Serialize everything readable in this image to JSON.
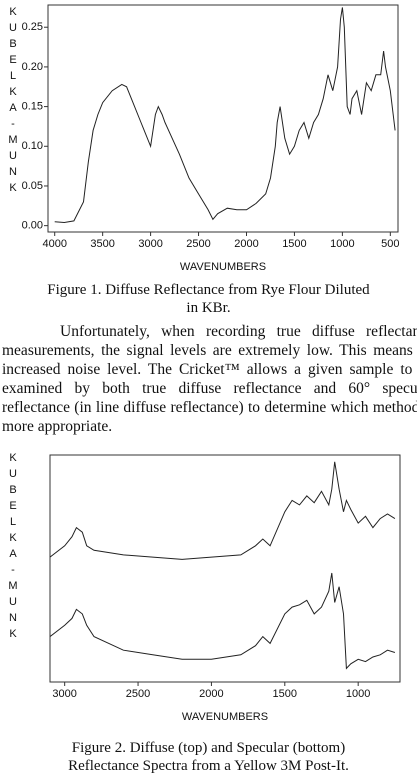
{
  "chart_data": [
    {
      "type": "line",
      "y_label": "KUBELKA-MUNK",
      "x_label": "WAVENUMBERS",
      "caption": "Figure 1.  Diffuse Reflectance from Rye Flour Diluted in KBr.",
      "x": [
        4000,
        3900,
        3800,
        3700,
        3650,
        3600,
        3550,
        3500,
        3400,
        3300,
        3250,
        3200,
        3100,
        3000,
        2950,
        2920,
        2880,
        2850,
        2700,
        2600,
        2500,
        2400,
        2350,
        2300,
        2200,
        2100,
        2000,
        1900,
        1800,
        1750,
        1700,
        1680,
        1650,
        1600,
        1550,
        1500,
        1450,
        1400,
        1350,
        1300,
        1250,
        1200,
        1150,
        1100,
        1050,
        1020,
        1000,
        980,
        950,
        920,
        900,
        850,
        800,
        750,
        700,
        650,
        600,
        570,
        550,
        500,
        450
      ],
      "series": [
        {
          "color": "#222222",
          "values": [
            0.005,
            0.004,
            0.006,
            0.03,
            0.08,
            0.12,
            0.14,
            0.155,
            0.17,
            0.178,
            0.175,
            0.16,
            0.13,
            0.1,
            0.14,
            0.15,
            0.14,
            0.13,
            0.09,
            0.06,
            0.04,
            0.02,
            0.008,
            0.015,
            0.022,
            0.02,
            0.02,
            0.028,
            0.04,
            0.06,
            0.1,
            0.13,
            0.15,
            0.11,
            0.09,
            0.1,
            0.12,
            0.13,
            0.11,
            0.13,
            0.14,
            0.16,
            0.19,
            0.17,
            0.2,
            0.26,
            0.275,
            0.25,
            0.15,
            0.14,
            0.16,
            0.17,
            0.14,
            0.18,
            0.17,
            0.19,
            0.19,
            0.22,
            0.2,
            0.17,
            0.12
          ]
        }
      ],
      "xlim": [
        4070,
        420
      ],
      "ylim": [
        -0.008,
        0.278
      ],
      "xticks": [
        4000,
        3500,
        3000,
        2500,
        2000,
        1500,
        1000,
        500
      ],
      "yticks": [
        {
          "value": 0,
          "label": "0.00"
        },
        {
          "value": 0.05,
          "label": "0.05"
        },
        {
          "value": 0.1,
          "label": "0.10"
        },
        {
          "value": 0.15,
          "label": "0.15"
        },
        {
          "value": 0.2,
          "label": "0.20"
        },
        {
          "value": 0.25,
          "label": "0.25"
        }
      ]
    },
    {
      "type": "line",
      "y_label": "KUBELKA-MUNK",
      "x_label": "WAVENUMBERS",
      "caption": "Figure 2.  Diffuse (top) and Specular (bottom) Reflectance Spectra from a Yellow 3M Post-It.",
      "x": [
        3100,
        3000,
        2950,
        2920,
        2880,
        2850,
        2800,
        2600,
        2400,
        2200,
        2000,
        1800,
        1700,
        1650,
        1600,
        1500,
        1450,
        1400,
        1350,
        1300,
        1250,
        1200,
        1180,
        1160,
        1130,
        1100,
        1080,
        1050,
        1000,
        950,
        900,
        850,
        800,
        750
      ],
      "series": [
        {
          "color": "#222222",
          "values": [
            0.55,
            0.6,
            0.64,
            0.68,
            0.66,
            0.6,
            0.58,
            0.56,
            0.55,
            0.54,
            0.55,
            0.56,
            0.6,
            0.63,
            0.6,
            0.75,
            0.8,
            0.78,
            0.82,
            0.79,
            0.84,
            0.78,
            0.85,
            0.97,
            0.85,
            0.75,
            0.8,
            0.76,
            0.7,
            0.73,
            0.68,
            0.72,
            0.74,
            0.72
          ]
        },
        {
          "color": "#222222",
          "values": [
            0.2,
            0.25,
            0.28,
            0.32,
            0.3,
            0.25,
            0.2,
            0.14,
            0.12,
            0.1,
            0.1,
            0.12,
            0.16,
            0.2,
            0.17,
            0.3,
            0.33,
            0.34,
            0.36,
            0.3,
            0.33,
            0.4,
            0.48,
            0.35,
            0.42,
            0.3,
            0.06,
            0.08,
            0.1,
            0.09,
            0.11,
            0.12,
            0.14,
            0.13
          ]
        }
      ],
      "xlim": [
        3100,
        715
      ],
      "ylim": [
        0,
        1
      ],
      "xticks": [
        3000,
        2500,
        2000,
        1500,
        1000
      ]
    }
  ],
  "paragraph": "Unfortunately, when recording true diffuse reflectance measurements, the signal levels are extremely low. This means an increased noise level. The Cricket™ allows a given sample to be examined by both true diffuse reflectance and 60° specular reflectance (in line diffuse reflectance) to determine which method is more appropriate."
}
